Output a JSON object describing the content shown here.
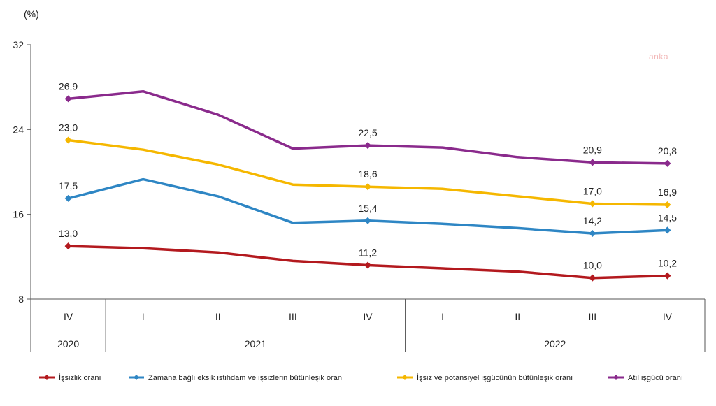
{
  "chart_data": {
    "type": "line",
    "unit_label": "(%)",
    "watermark": "anka",
    "ylim": [
      8,
      32
    ],
    "y_ticks": [
      "8",
      "16",
      "24",
      "32"
    ],
    "grid": false,
    "legend_position": "bottom",
    "categories": [
      "IV",
      "I",
      "II",
      "III",
      "IV",
      "I",
      "II",
      "III",
      "IV"
    ],
    "year_groups": [
      {
        "label": "2020",
        "span": 1
      },
      {
        "label": "2021",
        "span": 4
      },
      {
        "label": "2022",
        "span": 4
      }
    ],
    "series": [
      {
        "name": "İşsizlik oranı",
        "color": "#b3191e",
        "values": [
          13.0,
          12.8,
          12.4,
          11.6,
          11.2,
          10.9,
          10.6,
          10.0,
          10.2
        ],
        "labels": [
          "13,0",
          "",
          "",
          "",
          "11,2",
          "",
          "",
          "10,0",
          "10,2"
        ]
      },
      {
        "name": "Zamana bağlı eksik istihdam ve işsizlerin bütünleşik oranı",
        "color": "#2e86c4",
        "values": [
          17.5,
          19.3,
          17.7,
          15.2,
          15.4,
          15.1,
          14.7,
          14.2,
          14.5
        ],
        "labels": [
          "17,5",
          "",
          "",
          "",
          "15,4",
          "",
          "",
          "14,2",
          "14,5"
        ]
      },
      {
        "name": "İşsiz ve potansiyel işgücünün bütünleşik oranı",
        "color": "#f5b700",
        "values": [
          23.0,
          22.1,
          20.7,
          18.8,
          18.6,
          18.4,
          17.7,
          17.0,
          16.9
        ],
        "labels": [
          "23,0",
          "",
          "",
          "",
          "18,6",
          "",
          "",
          "17,0",
          "16,9"
        ]
      },
      {
        "name": "Atıl işgücü oranı",
        "color": "#8a2a8c",
        "values": [
          26.9,
          27.6,
          25.4,
          22.2,
          22.5,
          22.3,
          21.4,
          20.9,
          20.8
        ],
        "labels": [
          "26,9",
          "",
          "",
          "",
          "22,5",
          "",
          "",
          "20,9",
          "20,8"
        ]
      }
    ]
  }
}
